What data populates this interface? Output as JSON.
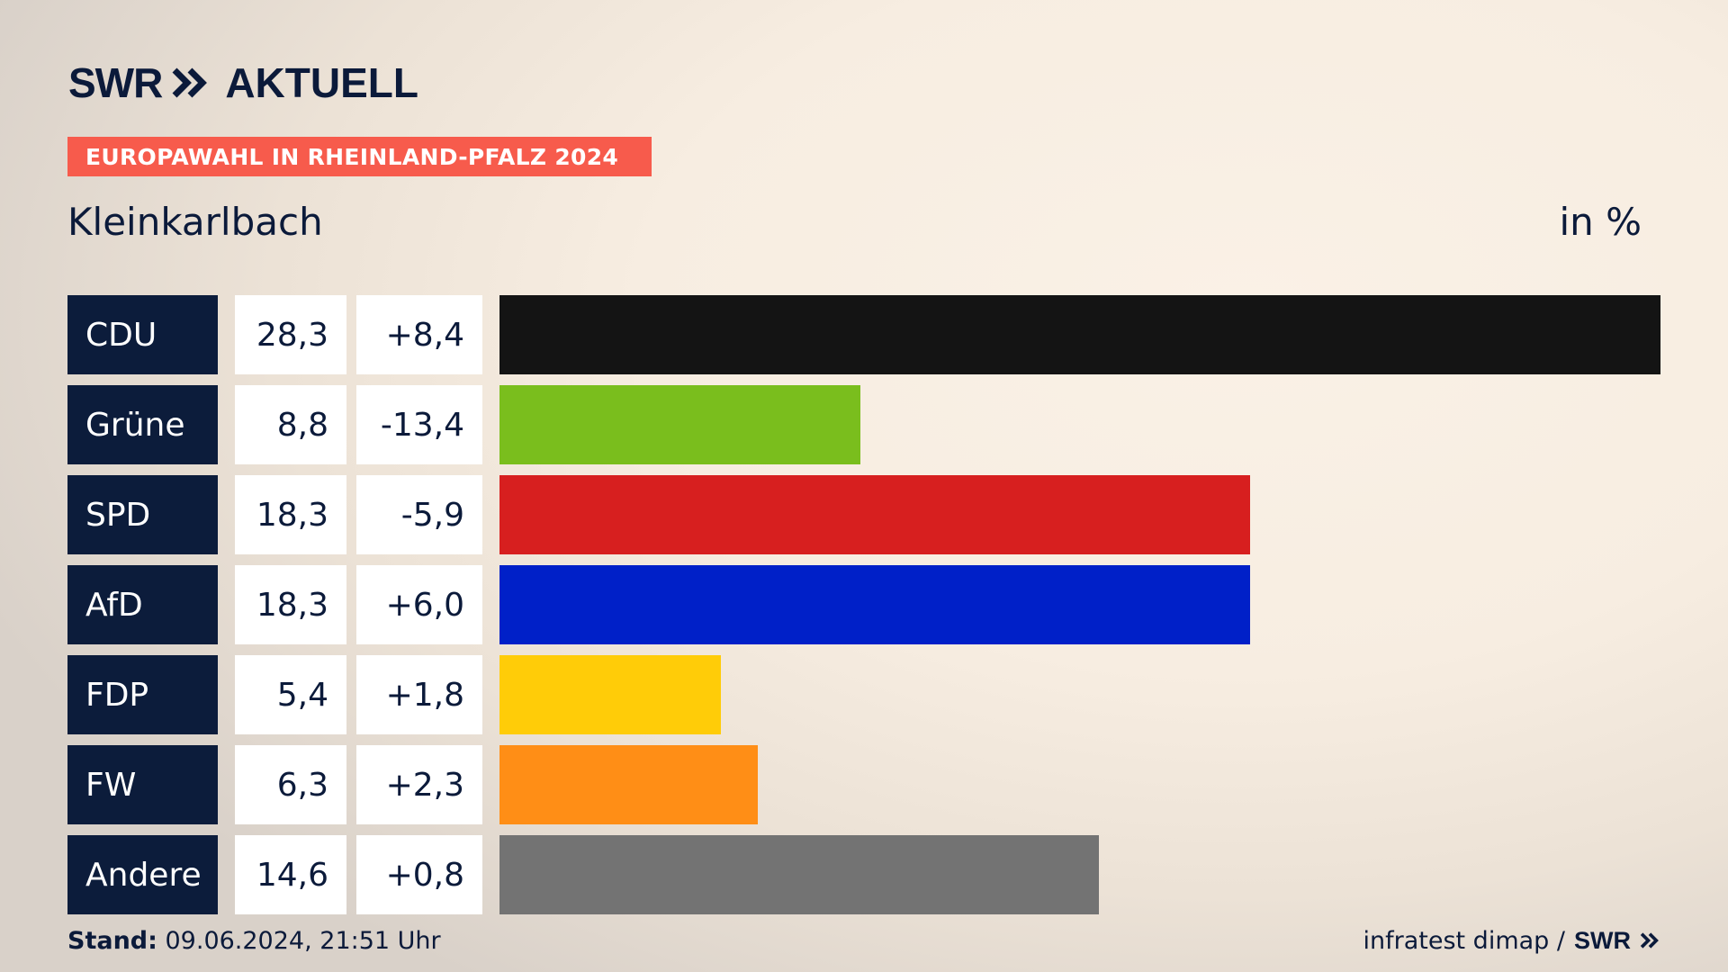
{
  "header": {
    "logo_text": "SWR",
    "logo_icon": "double-chevron-icon",
    "logo_suffix": "AKTUELL",
    "banner": "EUROPAWAHL IN RHEINLAND-PFALZ 2024",
    "region": "Kleinkarlbach",
    "unit": "in %"
  },
  "colors": {
    "navy": "#0c1c3b",
    "banner": "#f75b4c"
  },
  "chart_data": {
    "type": "bar",
    "orientation": "horizontal",
    "categories": [
      "CDU",
      "Grüne",
      "SPD",
      "AfD",
      "FDP",
      "FW",
      "Andere"
    ],
    "values": [
      28.3,
      8.8,
      18.3,
      18.3,
      5.4,
      6.3,
      14.6
    ],
    "values_label": [
      "28,3",
      "8,8",
      "18,3",
      "18,3",
      "5,4",
      "6,3",
      "14,6"
    ],
    "changes_label": [
      "+8,4",
      "-13,4",
      "-5,9",
      "+6,0",
      "+1,8",
      "+2,3",
      "+0,8"
    ],
    "colors": [
      "#141414",
      "#7abe1d",
      "#d71f1f",
      "#0020c8",
      "#ffcc08",
      "#ff8e16",
      "#737373"
    ],
    "xlim": [
      0,
      28.3
    ],
    "unit": "in %"
  },
  "footer": {
    "stand_label": "Stand:",
    "stand_value": " 09.06.2024, 21:51 Uhr",
    "source": "infratest dimap /",
    "source_logo": "SWR",
    "source_icon": "double-chevron-icon"
  }
}
